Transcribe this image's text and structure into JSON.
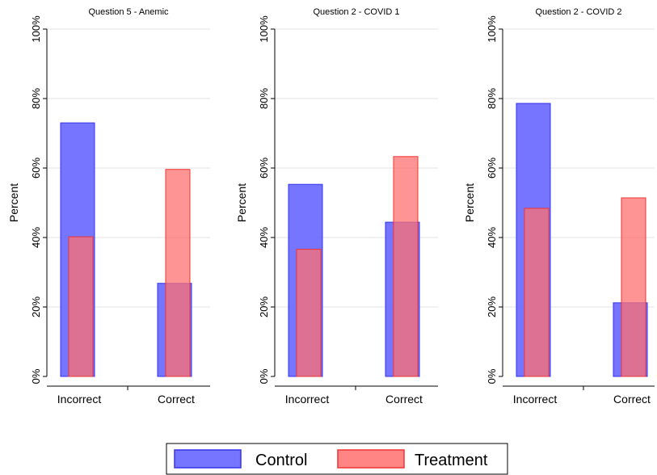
{
  "colors": {
    "control": "#6666ff",
    "control_edge": "#3333ee",
    "treatment": "#ff7070",
    "treatment_edge": "#ee3333",
    "grid": "#e3e3e3",
    "axis": "#000000"
  },
  "legend": {
    "items": [
      {
        "label": "Control",
        "color": "#6666ff"
      },
      {
        "label": "Treatment",
        "color": "#ff7070"
      }
    ],
    "position": "bottom-center"
  },
  "chart_data": [
    {
      "type": "bar",
      "title": "Question 5 - Anemic",
      "ylabel": "Percent",
      "categories": [
        "Incorrect",
        "Correct"
      ],
      "series": [
        {
          "name": "Control",
          "values": [
            73,
            26.8
          ]
        },
        {
          "name": "Treatment",
          "values": [
            40.2,
            59.6
          ]
        }
      ],
      "ylim": [
        0,
        100
      ],
      "yticks": [
        "0%",
        "20%",
        "40%",
        "60%",
        "80%",
        "100%"
      ],
      "grid": true
    },
    {
      "type": "bar",
      "title": "Question 2 - COVID 1",
      "ylabel": "Percent",
      "categories": [
        "Incorrect",
        "Correct"
      ],
      "series": [
        {
          "name": "Control",
          "values": [
            55.3,
            44.4
          ]
        },
        {
          "name": "Treatment",
          "values": [
            36.6,
            63.3
          ]
        }
      ],
      "ylim": [
        0,
        100
      ],
      "yticks": [
        "0%",
        "20%",
        "40%",
        "60%",
        "80%",
        "100%"
      ],
      "grid": true
    },
    {
      "type": "bar",
      "title": "Question 2 - COVID 2",
      "ylabel": "Percent",
      "categories": [
        "Incorrect",
        "Correct"
      ],
      "series": [
        {
          "name": "Control",
          "values": [
            78.6,
            21.2
          ]
        },
        {
          "name": "Treatment",
          "values": [
            48.4,
            51.4
          ]
        }
      ],
      "ylim": [
        0,
        100
      ],
      "yticks": [
        "0%",
        "20%",
        "40%",
        "60%",
        "80%",
        "100%"
      ],
      "grid": true
    }
  ]
}
